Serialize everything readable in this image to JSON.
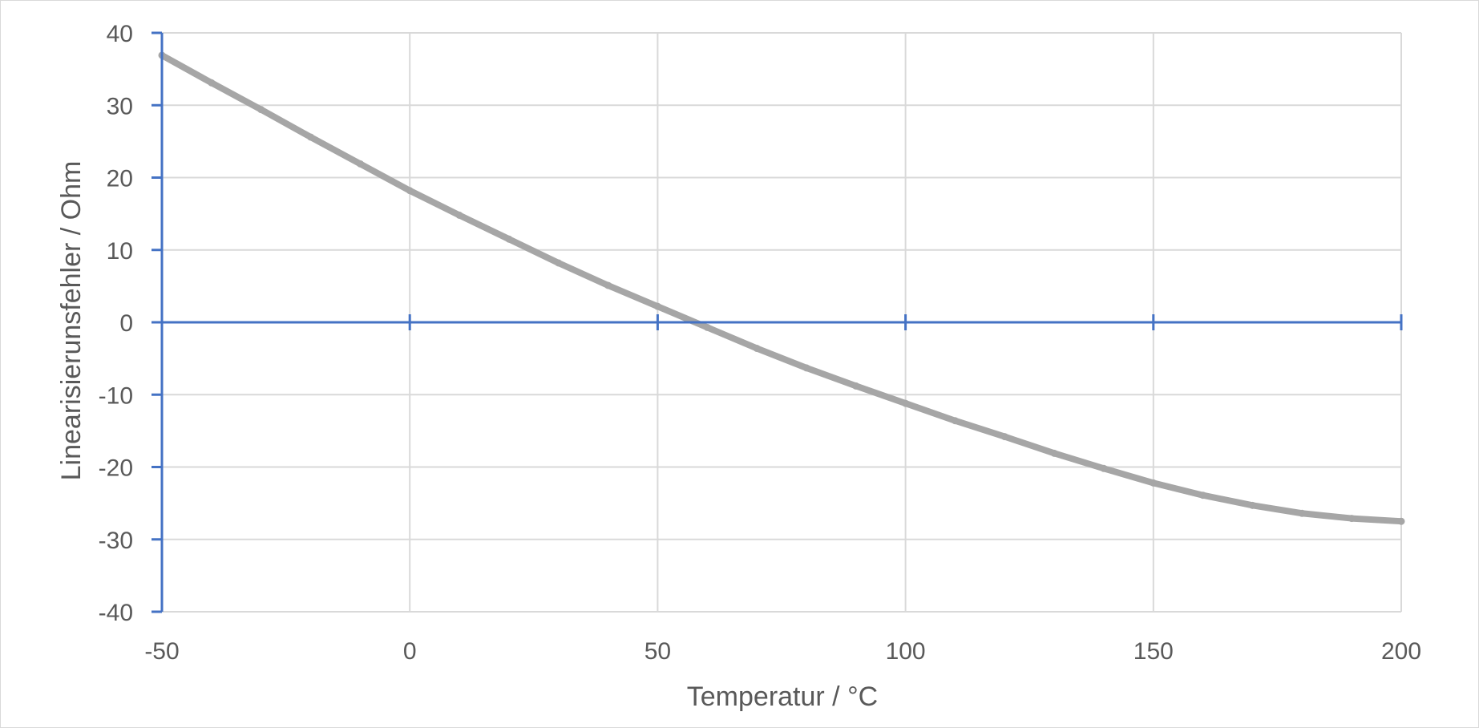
{
  "chart_data": {
    "type": "scatter",
    "title": "",
    "xlabel": "Temperatur / °C",
    "ylabel": "Linearisierunsfehler / Ohm",
    "xlim": [
      -50,
      200
    ],
    "ylim": [
      -40,
      40
    ],
    "x_ticks": [
      -50,
      0,
      50,
      100,
      150,
      200
    ],
    "y_ticks": [
      -40,
      -30,
      -20,
      -10,
      0,
      10,
      20,
      30,
      40
    ],
    "grid": true,
    "legend": "none",
    "series": [
      {
        "color": "#a6a6a6",
        "x": [
          -50,
          -40,
          -30,
          -20,
          -10,
          0,
          10,
          20,
          30,
          40,
          50,
          60,
          70,
          80,
          90,
          100,
          110,
          120,
          130,
          140,
          150,
          160,
          170,
          180,
          190,
          200
        ],
        "y": [
          36.9,
          33.1,
          29.4,
          25.6,
          21.9,
          18.2,
          14.8,
          11.5,
          8.2,
          5.1,
          2.2,
          -0.7,
          -3.6,
          -6.3,
          -8.8,
          -11.2,
          -13.6,
          -15.8,
          -18.1,
          -20.2,
          -22.2,
          -23.9,
          -25.3,
          -26.4,
          -27.1,
          -27.5
        ]
      }
    ]
  },
  "colors": {
    "axis": "#4472c4",
    "grid": "#d9d9d9",
    "text": "#595959",
    "series": "#a6a6a6"
  }
}
